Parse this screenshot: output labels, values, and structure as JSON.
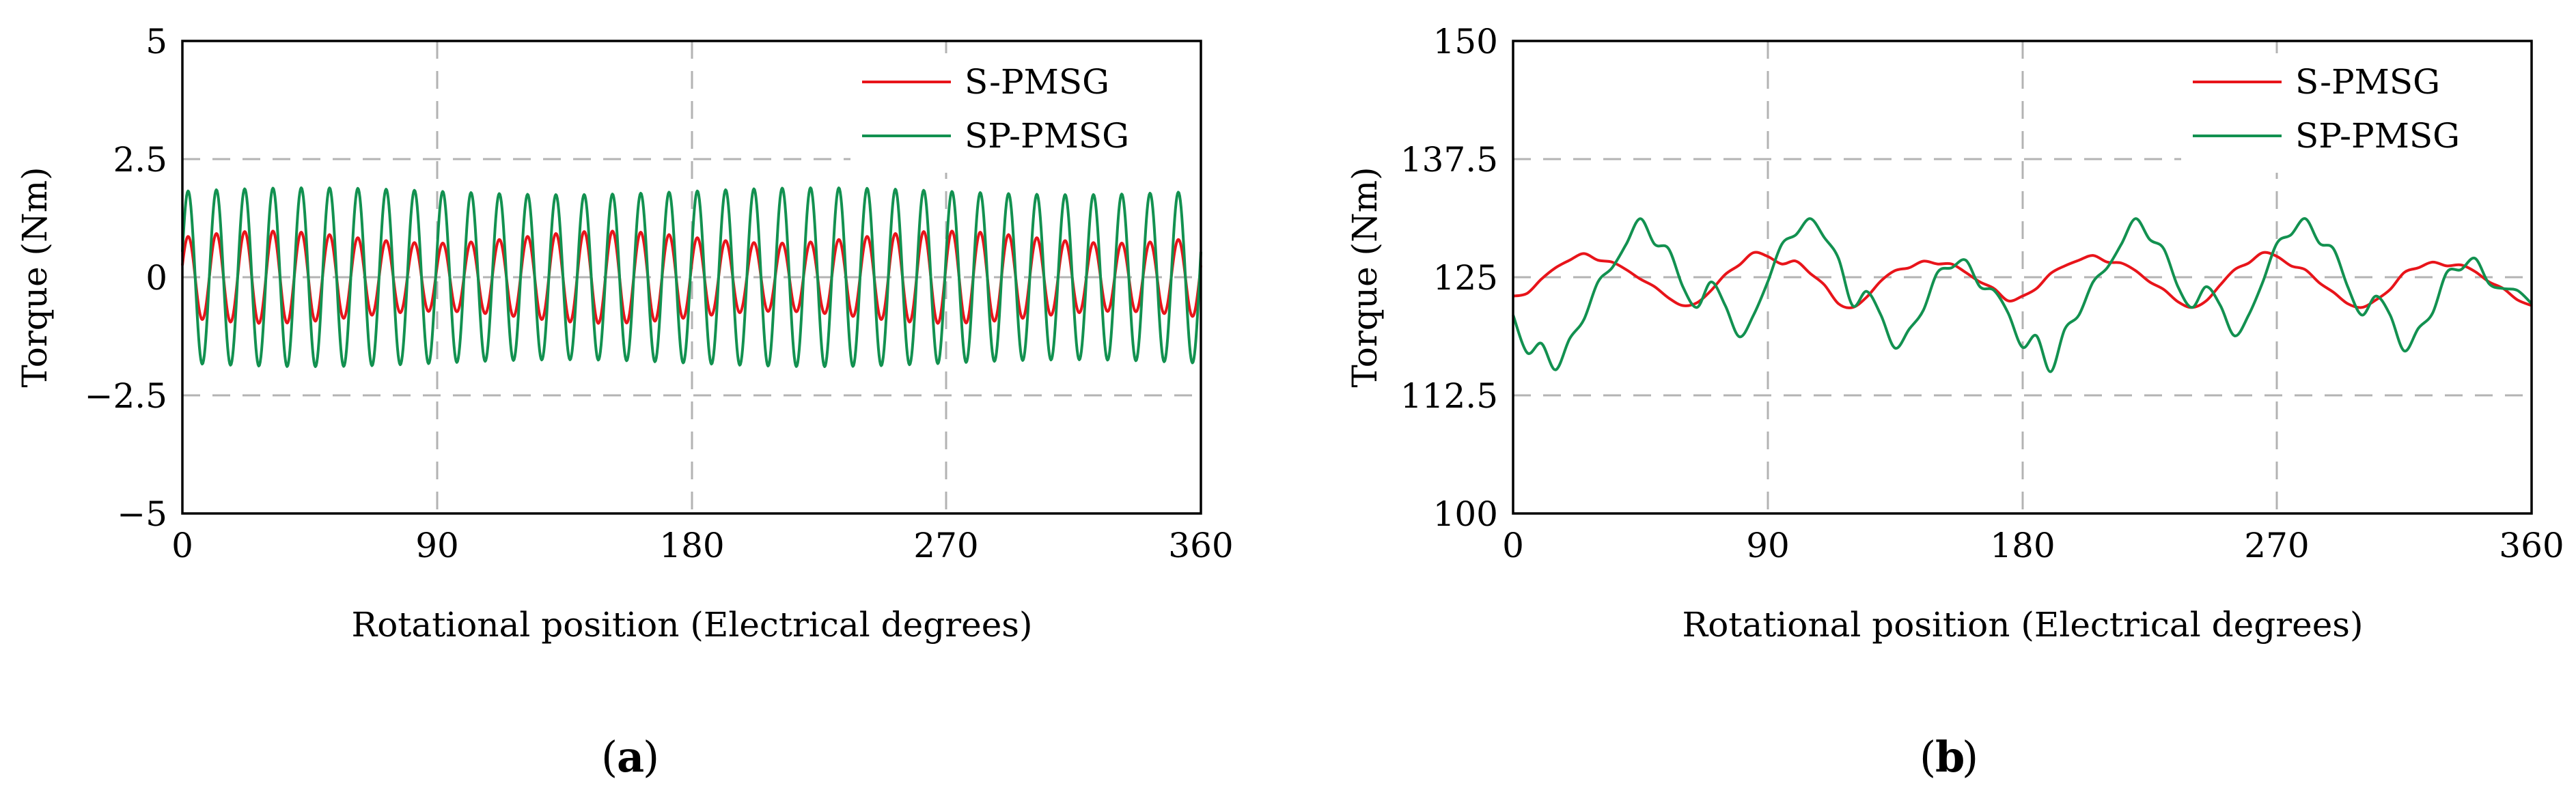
{
  "chart_data": [
    {
      "id": "a",
      "type": "line",
      "subfigure_label": "a",
      "xlabel": "Rotational position (Electrical degrees)",
      "ylabel": "Torque (Nm)",
      "xlim": [
        0,
        360
      ],
      "ylim": [
        -5,
        5
      ],
      "xticks": [
        0,
        90,
        180,
        270,
        360
      ],
      "xtick_labels": [
        "0",
        "90",
        "180",
        "270",
        "360"
      ],
      "yticks": [
        -5,
        -2.5,
        0,
        2.5,
        5
      ],
      "ytick_labels": [
        "−5",
        "−2.5",
        "0",
        "2.5",
        "5"
      ],
      "grid": true,
      "legend_position": "top-right",
      "series": [
        {
          "name": "S-PMSG",
          "color": "#e8141a",
          "kind": "ripple",
          "mean": 0,
          "amp": 0.85,
          "cycles": 36,
          "mod_amp": 0.15,
          "mod_cycles": 3,
          "phase": 0.3
        },
        {
          "name": "SP-PMSG",
          "color": "#129150",
          "kind": "ripple",
          "mean": 0,
          "amp": 1.82,
          "cycles": 36,
          "mod_amp": 0.04,
          "mod_cycles": 2,
          "phase": 0.3
        }
      ]
    },
    {
      "id": "b",
      "type": "line",
      "subfigure_label": "b",
      "xlabel": "Rotational position (Electrical degrees)",
      "ylabel": "Torque (Nm)",
      "xlim": [
        0,
        360
      ],
      "ylim": [
        100,
        150
      ],
      "xticks": [
        0,
        90,
        180,
        270,
        360
      ],
      "xtick_labels": [
        "0",
        "90",
        "180",
        "270",
        "360"
      ],
      "yticks": [
        100,
        112.5,
        125,
        137.5,
        150
      ],
      "ytick_labels": [
        "100",
        "112.5",
        "125",
        "137.5",
        "150"
      ],
      "grid": true,
      "legend_position": "top-right",
      "series": [
        {
          "name": "S-PMSG",
          "color": "#e8141a",
          "kind": "points",
          "x": [
            0,
            5,
            10,
            15,
            20,
            25,
            30,
            35,
            40,
            45,
            50,
            55,
            60,
            65,
            70,
            75,
            80,
            85,
            90,
            95,
            100,
            105,
            110,
            115,
            120,
            125,
            130,
            135,
            140,
            145,
            150,
            155,
            160,
            165,
            170,
            175,
            180,
            185,
            190,
            195,
            200,
            205,
            210,
            215,
            220,
            225,
            230,
            235,
            240,
            245,
            250,
            255,
            260,
            265,
            270,
            275,
            280,
            285,
            290,
            295,
            300,
            305,
            310,
            315,
            320,
            325,
            330,
            335,
            340,
            345,
            350,
            355,
            360
          ],
          "y": [
            123,
            123.3,
            124.8,
            126,
            126.8,
            127.5,
            126.8,
            126.6,
            125.8,
            124.8,
            124,
            122.8,
            122,
            122.3,
            123.6,
            125.3,
            126.3,
            127.6,
            127.2,
            126.4,
            126.7,
            125.4,
            124.2,
            122.2,
            121.8,
            122.9,
            124.6,
            125.7,
            126,
            126.7,
            126.4,
            126.4,
            125.5,
            124.5,
            123.8,
            122.5,
            123,
            123.8,
            125.4,
            126.2,
            126.8,
            127.3,
            126.6,
            126.5,
            125.7,
            124.5,
            123.7,
            122.4,
            121.8,
            122.5,
            124.2,
            125.8,
            126.5,
            127.6,
            127.2,
            126.2,
            125.8,
            124.4,
            123.4,
            122.2,
            121.8,
            122.6,
            123.7,
            125.5,
            126,
            126.6,
            126.2,
            126.3,
            125.6,
            124.5,
            123.8,
            122.6,
            122
          ]
        },
        {
          "name": "SP-PMSG",
          "color": "#129150",
          "kind": "points",
          "x": [
            0,
            5,
            10,
            15,
            20,
            25,
            30,
            35,
            40,
            45,
            50,
            55,
            60,
            65,
            70,
            75,
            80,
            85,
            90,
            95,
            100,
            105,
            110,
            115,
            120,
            125,
            130,
            135,
            140,
            145,
            150,
            155,
            160,
            165,
            170,
            175,
            180,
            185,
            190,
            195,
            200,
            205,
            210,
            215,
            220,
            225,
            230,
            235,
            240,
            245,
            250,
            255,
            260,
            265,
            270,
            275,
            280,
            285,
            290,
            295,
            300,
            305,
            310,
            315,
            320,
            325,
            330,
            335,
            340,
            345,
            350,
            355,
            360
          ],
          "y": [
            121,
            117,
            118,
            115.2,
            118.5,
            120.5,
            124.5,
            126,
            128.5,
            131.2,
            128.5,
            128,
            124,
            121.8,
            124.5,
            122,
            118.7,
            121,
            124.5,
            128.5,
            129.5,
            131.2,
            129.2,
            127,
            122,
            123.5,
            121,
            117.5,
            119.5,
            121.5,
            125.5,
            126,
            126.8,
            124,
            123.6,
            121.2,
            117.6,
            118.8,
            115,
            119.5,
            121,
            124.5,
            126,
            128.5,
            131.2,
            129,
            128,
            124,
            121.8,
            124,
            122,
            118.8,
            121,
            124.5,
            128.6,
            129.5,
            131.2,
            128.6,
            128,
            124,
            121,
            123,
            121,
            117.2,
            119.6,
            121.2,
            125.5,
            125.8,
            127,
            124.3,
            123.8,
            123.6,
            122.2
          ]
        }
      ]
    }
  ]
}
